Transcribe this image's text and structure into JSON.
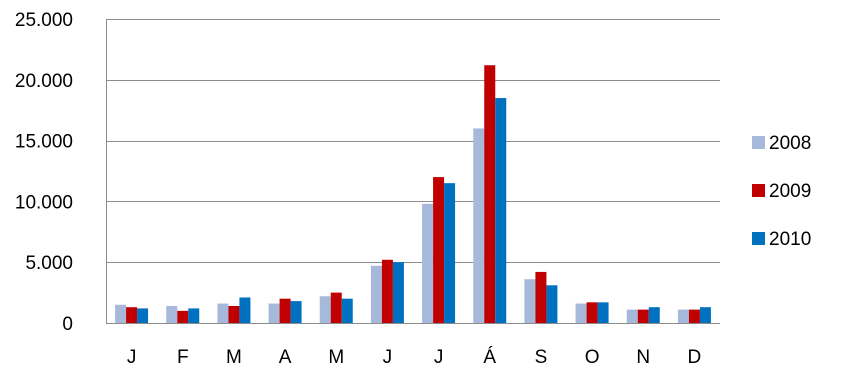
{
  "chart_data": {
    "type": "bar",
    "title": "",
    "xlabel": "",
    "ylabel": "",
    "categories": [
      "J",
      "F",
      "M",
      "A",
      "M",
      "J",
      "J",
      "Á",
      "S",
      "O",
      "N",
      "D"
    ],
    "series": [
      {
        "name": "2008",
        "color": "#A7B9DB",
        "values": [
          1500,
          1400,
          1600,
          1600,
          2200,
          4700,
          9800,
          16000,
          3600,
          1600,
          1100,
          1100
        ]
      },
      {
        "name": "2009",
        "color": "#C00000",
        "values": [
          1300,
          1000,
          1400,
          2000,
          2500,
          5200,
          12000,
          21200,
          4200,
          1700,
          1100,
          1100
        ]
      },
      {
        "name": "2010",
        "color": "#0070C0",
        "values": [
          1200,
          1200,
          2100,
          1800,
          2000,
          5000,
          11500,
          18500,
          3100,
          1700,
          1300,
          1300
        ]
      }
    ],
    "ylim": [
      0,
      25000
    ],
    "yticks": [
      0,
      5000,
      10000,
      15000,
      20000,
      25000
    ],
    "ytick_labels": [
      "0",
      "5.000",
      "10.000",
      "15.000",
      "20.000",
      "25.000"
    ],
    "grid": true,
    "legend_position": "right"
  }
}
